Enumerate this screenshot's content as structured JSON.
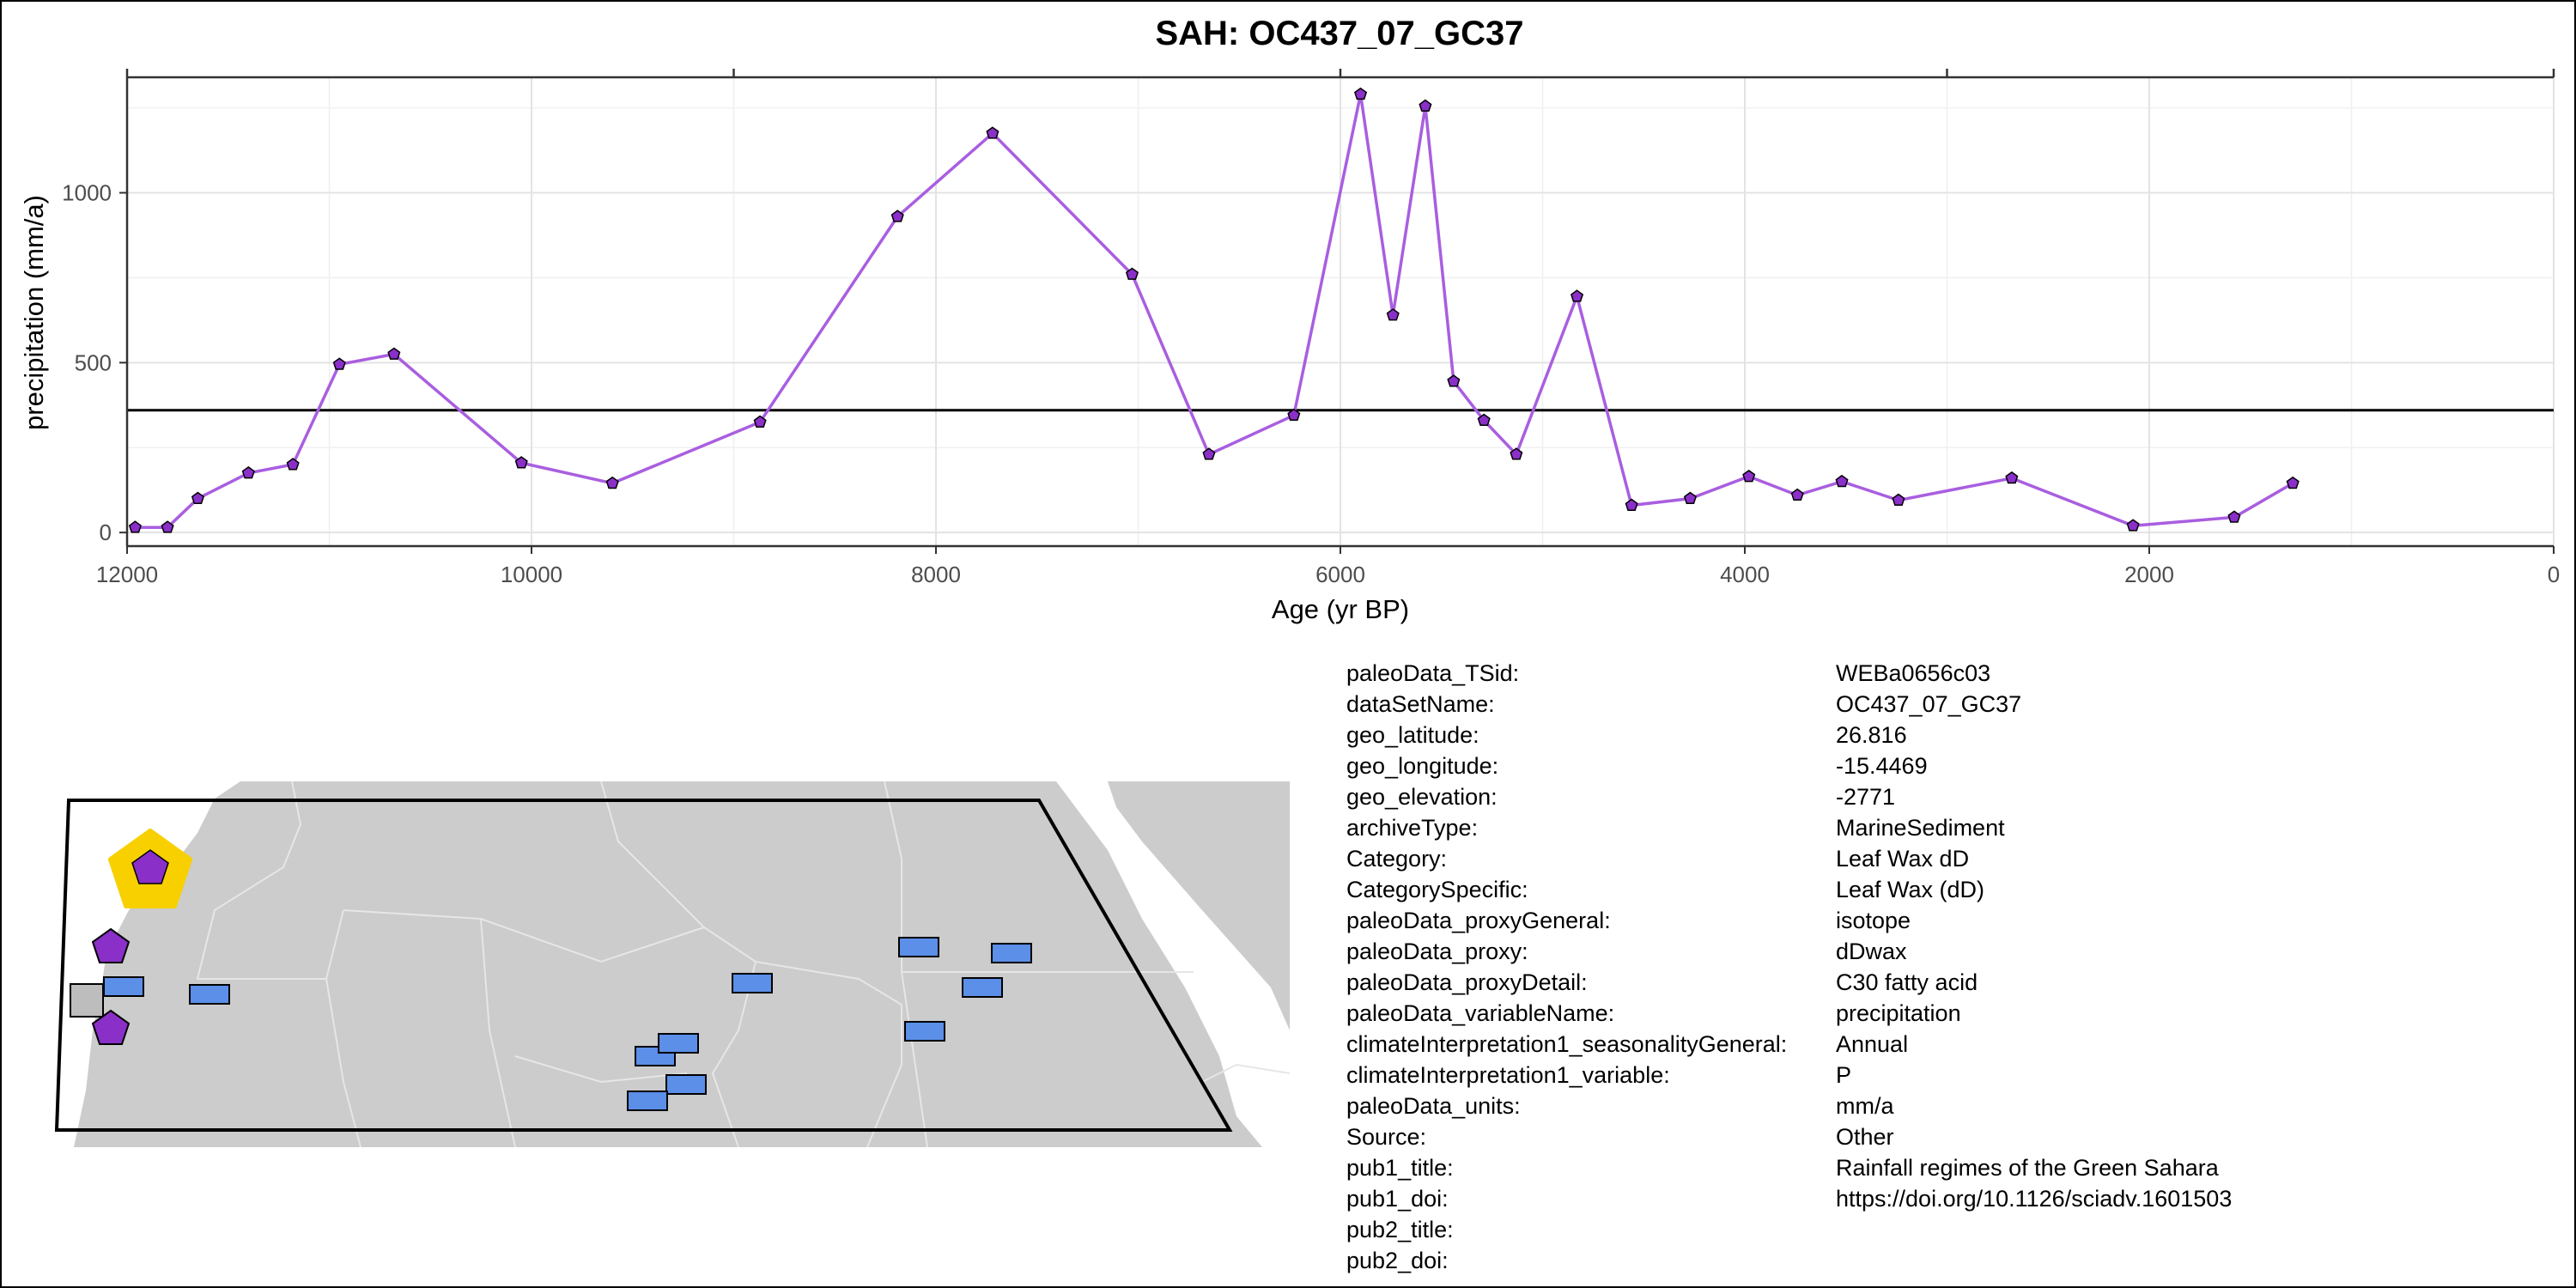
{
  "chart_data": {
    "type": "line",
    "title": "SAH: OC437_07_GC37",
    "xlabel": "Age (yr BP)",
    "ylabel": "precipitation (mm/a)",
    "xlim": [
      12000,
      0
    ],
    "ylim": [
      -40,
      1340
    ],
    "x_ticks": [
      12000,
      10000,
      8000,
      6000,
      4000,
      2000,
      0
    ],
    "x_tick_labels": [
      "12000",
      "10000",
      "8000",
      "6000",
      "4000",
      "2000",
      "0"
    ],
    "y_ticks": [
      0,
      500,
      1000
    ],
    "y_tick_labels": [
      "0",
      "500",
      "1000"
    ],
    "hline": 360,
    "grid": true,
    "series": [
      {
        "color": "#a95ee0",
        "x": [
          11960,
          11800,
          11650,
          11400,
          11180,
          10950,
          10680,
          10050,
          9600,
          8870,
          8190,
          7720,
          7030,
          6650,
          6230,
          5900,
          5740,
          5580,
          5440,
          5290,
          5130,
          4830,
          4560,
          4270,
          3980,
          3740,
          3520,
          3240,
          2680,
          2080,
          1580,
          1290
        ],
        "y": [
          15,
          15,
          100,
          175,
          200,
          495,
          525,
          205,
          145,
          325,
          930,
          1175,
          760,
          230,
          345,
          1290,
          640,
          1255,
          445,
          330,
          230,
          695,
          80,
          100,
          165,
          110,
          150,
          95,
          160,
          20,
          45,
          145
        ]
      }
    ]
  },
  "metadata": [
    {
      "key": "paleoData_TSid:",
      "value": "WEBa0656c03"
    },
    {
      "key": "dataSetName:",
      "value": "OC437_07_GC37"
    },
    {
      "key": "geo_latitude:",
      "value": "26.816"
    },
    {
      "key": "geo_longitude:",
      "value": "-15.4469"
    },
    {
      "key": "geo_elevation:",
      "value": "-2771"
    },
    {
      "key": "archiveType:",
      "value": "MarineSediment"
    },
    {
      "key": "Category:",
      "value": "Leaf Wax dD"
    },
    {
      "key": "CategorySpecific:",
      "value": "Leaf Wax (dD)"
    },
    {
      "key": "paleoData_proxyGeneral:",
      "value": "isotope"
    },
    {
      "key": "paleoData_proxy:",
      "value": "dDwax"
    },
    {
      "key": "paleoData_proxyDetail:",
      "value": "C30 fatty acid"
    },
    {
      "key": "paleoData_variableName:",
      "value": "precipitation"
    },
    {
      "key": "climateInterpretation1_seasonalityGeneral:",
      "value": "Annual"
    },
    {
      "key": "climateInterpretation1_variable:",
      "value": "P"
    },
    {
      "key": "paleoData_units:",
      "value": "mm/a"
    },
    {
      "key": "Source:",
      "value": "Other"
    },
    {
      "key": "pub1_title:",
      "value": "Rainfall regimes of the Green Sahara"
    },
    {
      "key": "pub1_doi:",
      "value": "https://doi.org/10.1126/sciadv.1601503"
    },
    {
      "key": "pub2_title:",
      "value": ""
    },
    {
      "key": "pub2_doi:",
      "value": ""
    }
  ],
  "map": {
    "land_color": "#cccccc",
    "border_color": "#e6e6e6",
    "site_color": "#8b2fc9",
    "highlight_color": "#f8d000",
    "other_site_color": "#5b8fe8",
    "other_site_gray": "#bdbdbd"
  }
}
